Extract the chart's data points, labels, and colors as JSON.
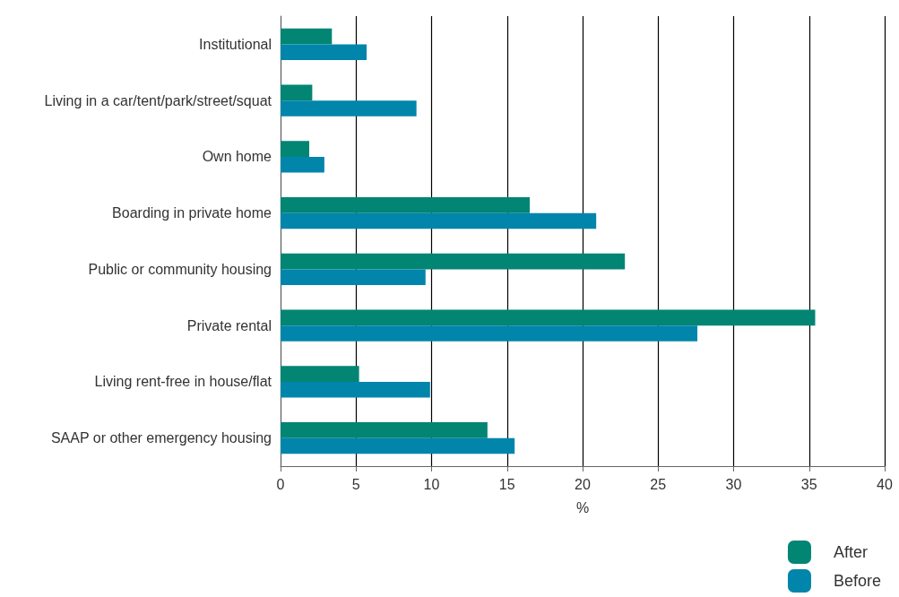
{
  "chart_data": {
    "type": "bar",
    "orientation": "horizontal",
    "xlabel": "%",
    "categories": [
      "Institutional",
      "Living in a car/tent/park/street/squat",
      "Own home",
      "Boarding in private home",
      "Public or community housing",
      "Private rental",
      "Living rent-free in house/flat",
      "SAAP or other emergency housing"
    ],
    "series": [
      {
        "name": "After",
        "color": "#038574",
        "values": [
          3.4,
          2.1,
          1.9,
          16.5,
          22.8,
          35.4,
          5.2,
          13.7
        ]
      },
      {
        "name": "Before",
        "color": "#0285ab",
        "values": [
          5.7,
          9.0,
          2.9,
          20.9,
          9.6,
          27.6,
          9.9,
          15.5
        ]
      }
    ],
    "xlim": [
      0,
      40
    ],
    "xticks": [
      0,
      5,
      10,
      15,
      20,
      25,
      30,
      35,
      40
    ],
    "grid": "x",
    "legend": "bottom right"
  }
}
